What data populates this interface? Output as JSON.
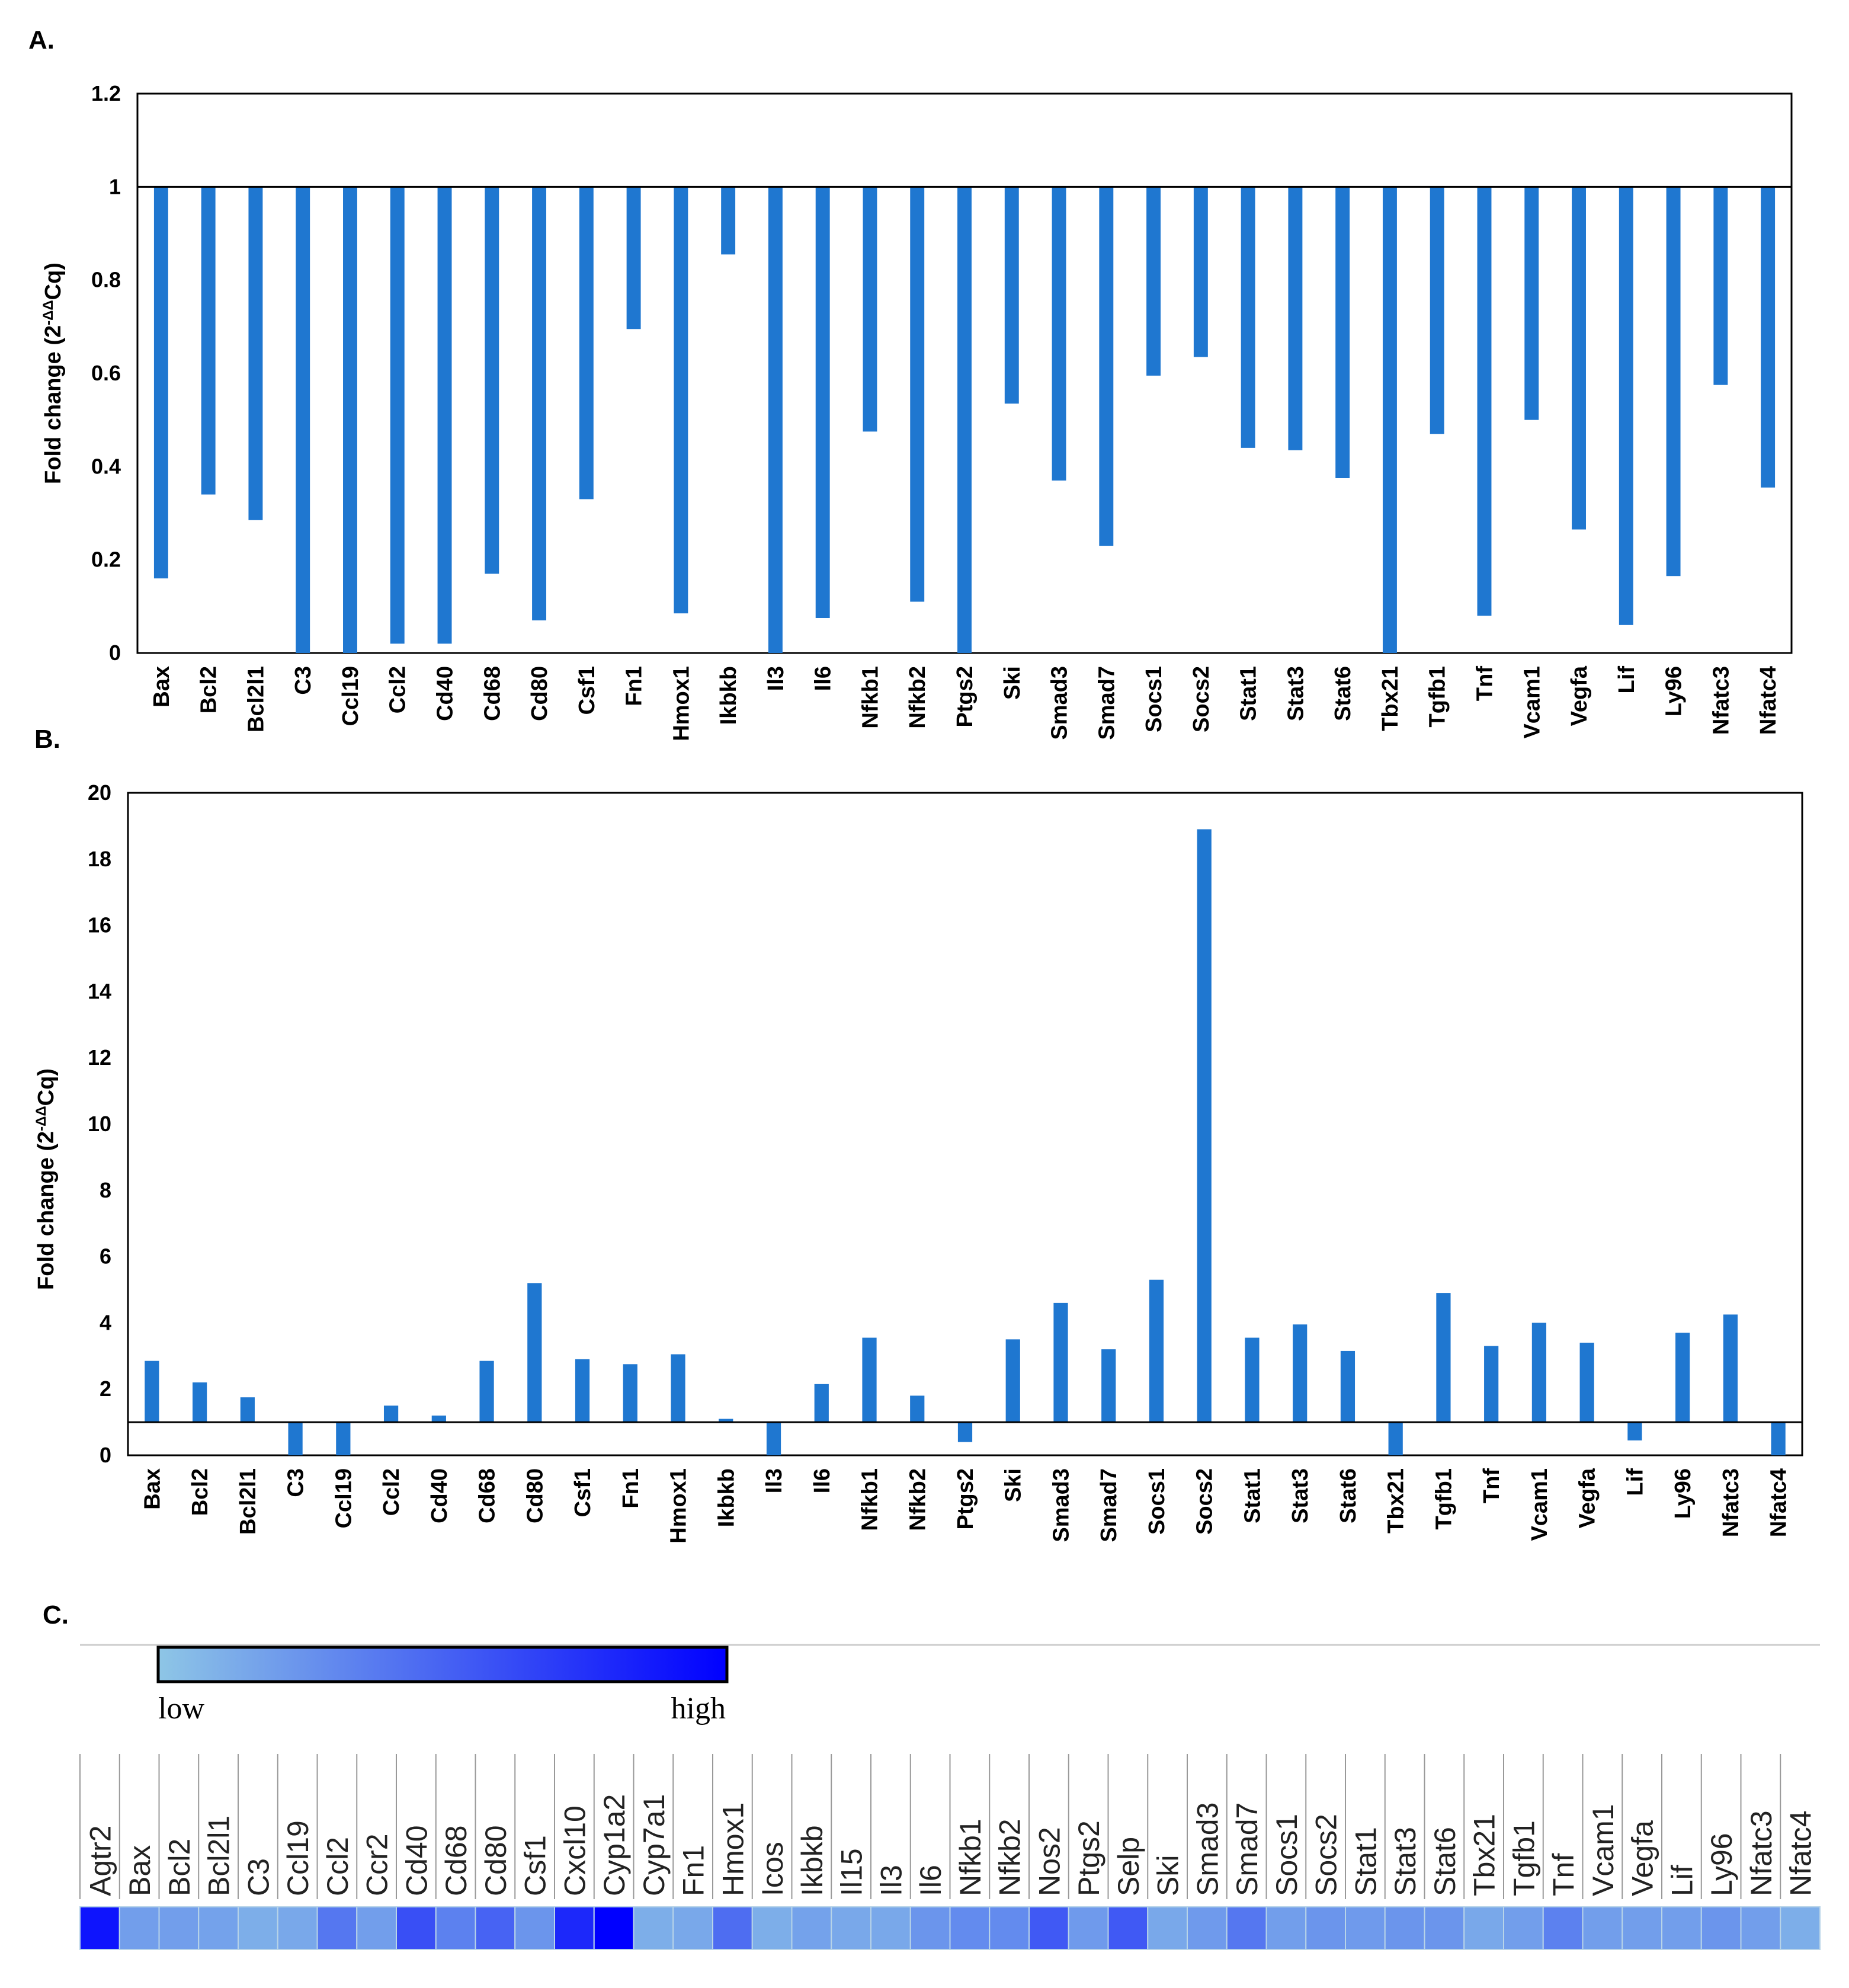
{
  "panels": {
    "a": "A.",
    "b": "B.",
    "c": "C."
  },
  "chart_data": [
    {
      "id": "A",
      "type": "bar",
      "ylabel_main": "Fold change (2",
      "ylabel_sup": "-ΔΔ",
      "ylabel_end": "Cq)",
      "baseline": 1,
      "ylim": [
        0,
        1.2
      ],
      "yticks": [
        0,
        0.2,
        0.4,
        0.6,
        0.8,
        1,
        1.2
      ],
      "categories": [
        "Bax",
        "Bcl2",
        "Bcl2l1",
        "C3",
        "Ccl19",
        "Ccl2",
        "Cd40",
        "Cd68",
        "Cd80",
        "Csf1",
        "Fn1",
        "Hmox1",
        "Ikbkb",
        "Il3",
        "Il6",
        "Nfkb1",
        "Nfkb2",
        "Ptgs2",
        "Ski",
        "Smad3",
        "Smad7",
        "Socs1",
        "Socs2",
        "Stat1",
        "Stat3",
        "Stat6",
        "Tbx21",
        "Tgfb1",
        "Tnf",
        "Vcam1",
        "Vegfa",
        "Lif",
        "Ly96",
        "Nfatc3",
        "Nfatc4"
      ],
      "values": [
        0.16,
        0.34,
        0.285,
        0.0,
        0.0,
        0.02,
        0.02,
        0.17,
        0.07,
        0.33,
        0.695,
        0.085,
        0.855,
        0.0,
        0.075,
        0.475,
        0.11,
        0.0,
        0.535,
        0.37,
        0.23,
        0.595,
        0.635,
        0.44,
        0.435,
        0.375,
        0.0,
        0.47,
        0.08,
        0.5,
        0.265,
        0.06,
        0.165,
        0.575,
        0.355
      ],
      "color": "#1f77d0"
    },
    {
      "id": "B",
      "type": "bar",
      "ylabel_main": "Fold change (2",
      "ylabel_sup": "-ΔΔ",
      "ylabel_end": "Cq)",
      "baseline": 1,
      "ylim": [
        0,
        20
      ],
      "yticks": [
        0,
        2,
        4,
        6,
        8,
        10,
        12,
        14,
        16,
        18,
        20
      ],
      "categories": [
        "Bax",
        "Bcl2",
        "Bcl2l1",
        "C3",
        "Ccl19",
        "Ccl2",
        "Cd40",
        "Cd68",
        "Cd80",
        "Csf1",
        "Fn1",
        "Hmox1",
        "Ikbkb",
        "Il3",
        "Il6",
        "Nfkb1",
        "Nfkb2",
        "Ptgs2",
        "Ski",
        "Smad3",
        "Smad7",
        "Socs1",
        "Socs2",
        "Stat1",
        "Stat3",
        "Stat6",
        "Tbx21",
        "Tgfb1",
        "Tnf",
        "Vcam1",
        "Vegfa",
        "Lif",
        "Ly96",
        "Nfatc3",
        "Nfatc4"
      ],
      "values": [
        2.85,
        2.2,
        1.75,
        0.0,
        0.0,
        1.5,
        1.2,
        2.85,
        5.2,
        2.9,
        2.75,
        3.05,
        1.1,
        0.0,
        2.15,
        3.55,
        1.8,
        0.4,
        3.5,
        4.6,
        3.2,
        5.3,
        18.9,
        3.55,
        3.95,
        3.15,
        0.0,
        4.9,
        3.3,
        4.0,
        3.4,
        0.45,
        3.7,
        4.25,
        0.0
      ],
      "color": "#1f77d0"
    },
    {
      "id": "C",
      "type": "heatmap",
      "legend_low": "low",
      "legend_high": "high",
      "legend_colors": [
        "#8ec6e6",
        "#0000ff"
      ],
      "categories": [
        "Agtr2",
        "Bax",
        "Bcl2",
        "Bcl2l1",
        "C3",
        "Ccl19",
        "Ccl2",
        "Ccr2",
        "Cd40",
        "Cd68",
        "Cd80",
        "Csf1",
        "Cxcl10",
        "Cyp1a2",
        "Cyp7a1",
        "Fn1",
        "Hmox1",
        "Icos",
        "Ikbkb",
        "Il15",
        "Il3",
        "Il6",
        "Nfkb1",
        "Nfkb2",
        "Nos2",
        "Ptgs2",
        "Selp",
        "Ski",
        "Smad3",
        "Smad7",
        "Socs1",
        "Socs2",
        "Stat1",
        "Stat3",
        "Stat6",
        "Tbx21",
        "Tgfb1",
        "Tnf",
        "Vcam1",
        "Vegfa",
        "Lif",
        "Ly96",
        "Nfatc3",
        "Nfatc4"
      ],
      "values": [
        0.9,
        0.2,
        0.2,
        0.18,
        0.12,
        0.15,
        0.4,
        0.2,
        0.6,
        0.35,
        0.5,
        0.25,
        0.8,
        1.0,
        0.12,
        0.15,
        0.45,
        0.12,
        0.18,
        0.15,
        0.15,
        0.25,
        0.3,
        0.3,
        0.55,
        0.22,
        0.55,
        0.15,
        0.22,
        0.4,
        0.2,
        0.25,
        0.22,
        0.25,
        0.25,
        0.15,
        0.2,
        0.35,
        0.2,
        0.2,
        0.2,
        0.25,
        0.2,
        0.12
      ]
    }
  ]
}
